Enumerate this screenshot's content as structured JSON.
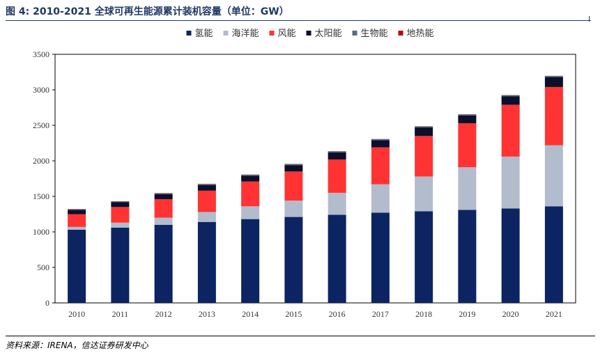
{
  "figure": {
    "title": "图 4:  2010-2021 全球可再生能源累计装机容量（单位：GW）",
    "source": "资料来源：IRENA，信达证券研发中心"
  },
  "chart_data": {
    "type": "bar",
    "stacked": true,
    "title": "",
    "xlabel": "",
    "ylabel": "",
    "ylim": [
      0,
      3500
    ],
    "yticks": [
      0,
      500,
      1000,
      1500,
      2000,
      2500,
      3000,
      3500
    ],
    "grid": false,
    "legend_position": "top",
    "categories": [
      "2010",
      "2011",
      "2012",
      "2013",
      "2014",
      "2015",
      "2016",
      "2017",
      "2018",
      "2019",
      "2020",
      "2021"
    ],
    "series": [
      {
        "name": "氢能",
        "color": "#0c2461",
        "values": [
          1030,
          1060,
          1100,
          1140,
          1180,
          1210,
          1240,
          1270,
          1290,
          1310,
          1330,
          1360
        ]
      },
      {
        "name": "海洋能",
        "color": "#b2bccc",
        "values": [
          40,
          70,
          100,
          140,
          180,
          230,
          310,
          400,
          490,
          600,
          730,
          860
        ]
      },
      {
        "name": "风能",
        "color": "#ff3333",
        "values": [
          180,
          220,
          260,
          300,
          350,
          410,
          470,
          520,
          570,
          620,
          730,
          820
        ]
      },
      {
        "name": "太阳能",
        "color": "#0a0f2c",
        "values": [
          60,
          70,
          70,
          80,
          80,
          90,
          100,
          100,
          120,
          110,
          120,
          140
        ]
      },
      {
        "name": "生物能",
        "color": "#5c6b7a",
        "values": [
          10,
          10,
          15,
          15,
          15,
          15,
          15,
          15,
          15,
          15,
          15,
          15
        ]
      },
      {
        "name": "地热能",
        "color": "#c00000",
        "values": [
          2,
          2,
          2,
          2,
          2,
          2,
          2,
          2,
          2,
          2,
          2,
          2
        ]
      }
    ]
  }
}
